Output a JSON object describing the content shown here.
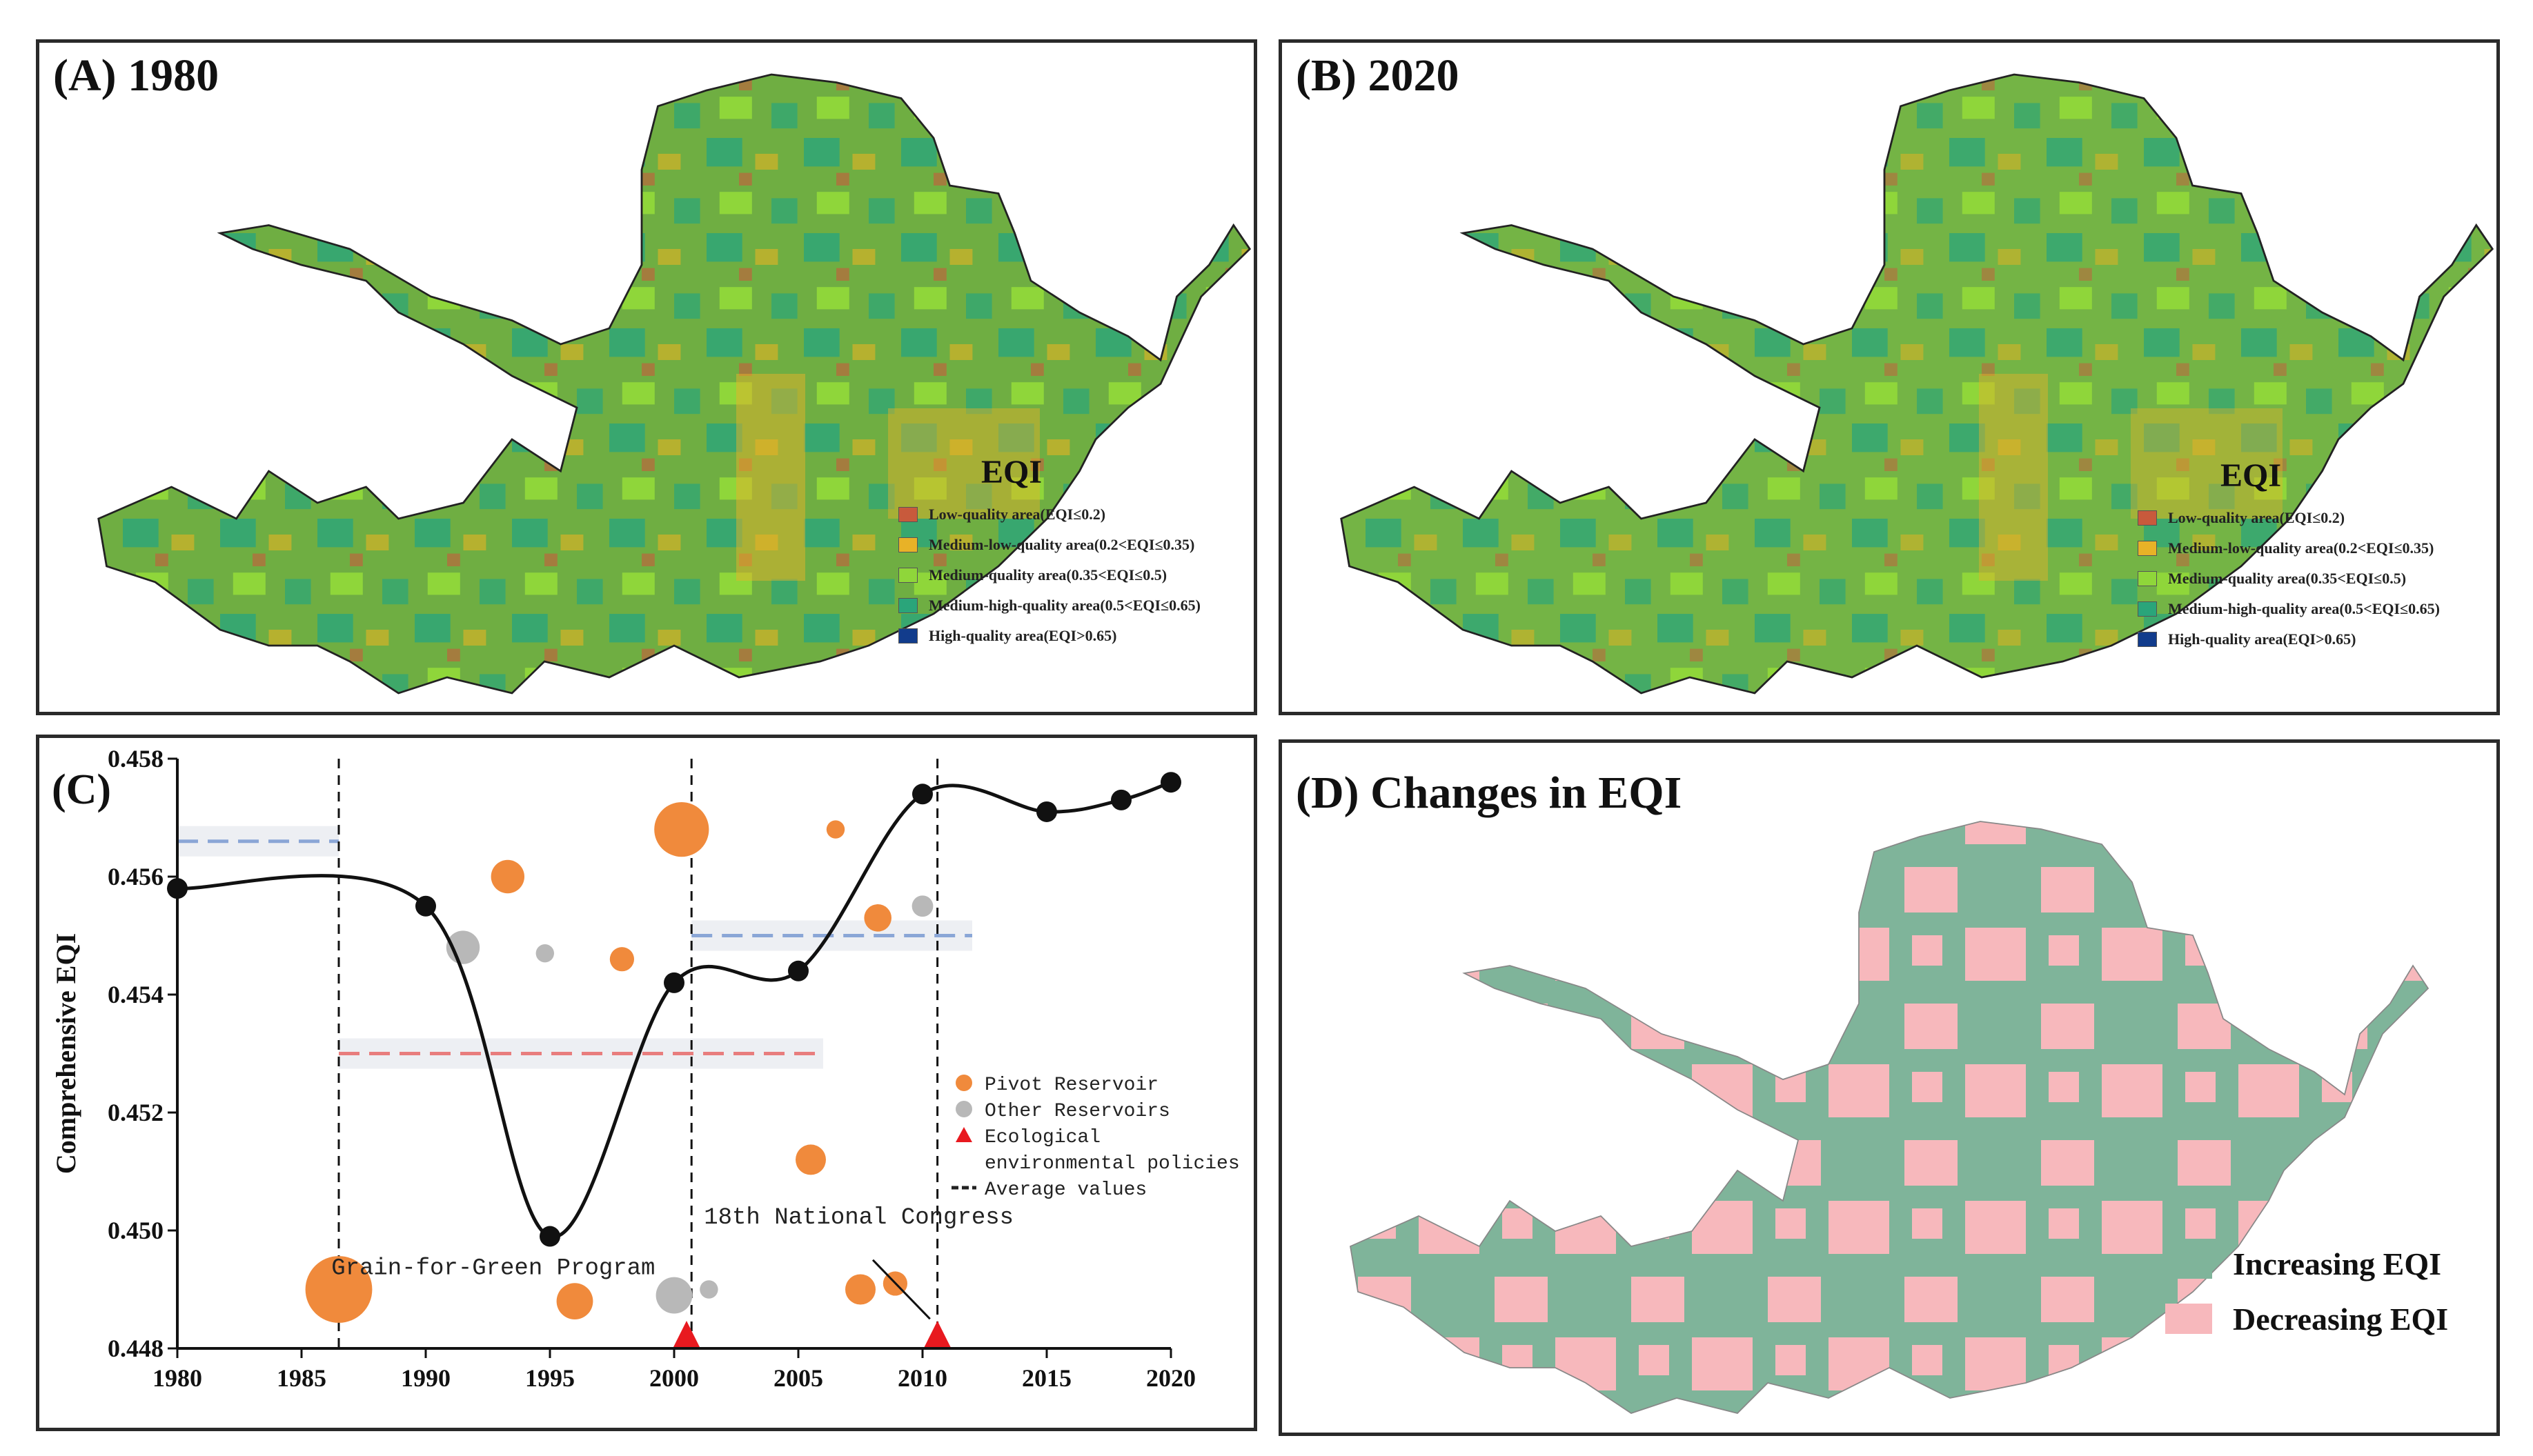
{
  "panel_a": {
    "title": "(A) 1980"
  },
  "panel_b": {
    "title": "(B) 2020"
  },
  "eqi_legend": {
    "title": "EQI",
    "items": [
      {
        "label": "Low-quality area(EQI≤0.2)",
        "color": "#c85a3c"
      },
      {
        "label": "Medium-low-quality area(0.2<EQI≤0.35)",
        "color": "#e8b227"
      },
      {
        "label": "Medium-quality area(0.35<EQI≤0.5)",
        "color": "#8fd63a"
      },
      {
        "label": "Medium-high-quality area(0.5<EQI≤0.65)",
        "color": "#2aa57a"
      },
      {
        "label": "High-quality area(EQI>0.65)",
        "color": "#123c8c"
      }
    ]
  },
  "panel_d": {
    "title": "(D) Changes in EQI",
    "legend": [
      {
        "label": "Increasing EQI",
        "color": "#7fb49a"
      },
      {
        "label": "Decreasing EQI",
        "color": "#f7b8bc"
      }
    ]
  },
  "chart_data": {
    "type": "line",
    "title": "(C)",
    "ylabel": "Comprehensive EQI",
    "xlabel": "",
    "xlim": [
      1980,
      2020
    ],
    "ylim": [
      0.448,
      0.458
    ],
    "xticks": [
      1980,
      1985,
      1990,
      1995,
      2000,
      2005,
      2010,
      2015,
      2020
    ],
    "yticks": [
      0.448,
      0.45,
      0.452,
      0.454,
      0.456,
      0.458
    ],
    "series": [
      {
        "name": "Comprehensive EQI",
        "x": [
          1980,
          1990,
          1995,
          2000,
          2005,
          2010,
          2015,
          2018,
          2020
        ],
        "y": [
          0.4558,
          0.4555,
          0.4499,
          0.4542,
          0.4544,
          0.4574,
          0.4571,
          0.4573,
          0.4576
        ]
      }
    ],
    "pivot_reservoirs": [
      {
        "x": 1986.5,
        "y": 0.449,
        "size": 2.2
      },
      {
        "x": 1993.3,
        "y": 0.456,
        "size": 1.1
      },
      {
        "x": 1996.0,
        "y": 0.4488,
        "size": 1.2
      },
      {
        "x": 1997.9,
        "y": 0.4546,
        "size": 0.8
      },
      {
        "x": 2000.3,
        "y": 0.4568,
        "size": 1.8
      },
      {
        "x": 2005.5,
        "y": 0.4512,
        "size": 1.0
      },
      {
        "x": 2006.5,
        "y": 0.4568,
        "size": 0.6
      },
      {
        "x": 2007.5,
        "y": 0.449,
        "size": 1.0
      },
      {
        "x": 2008.2,
        "y": 0.4553,
        "size": 0.9
      },
      {
        "x": 2008.9,
        "y": 0.4491,
        "size": 0.8
      }
    ],
    "other_reservoirs": [
      {
        "x": 1991.5,
        "y": 0.4548,
        "size": 1.1
      },
      {
        "x": 1994.8,
        "y": 0.4547,
        "size": 0.6
      },
      {
        "x": 2000.0,
        "y": 0.4489,
        "size": 1.2
      },
      {
        "x": 2001.4,
        "y": 0.449,
        "size": 0.6
      },
      {
        "x": 2010.0,
        "y": 0.4555,
        "size": 0.7
      }
    ],
    "policies": [
      {
        "x": 2000.5,
        "label": "Grain-for-Green Program"
      },
      {
        "x": 2010.6,
        "label": "18th National Congress"
      }
    ],
    "vertical_lines": [
      1986.5,
      2000.7,
      2010.6
    ],
    "average_values": [
      {
        "x0": 1980,
        "x1": 1986.5,
        "y": 0.4566,
        "color": "#8aa6d6"
      },
      {
        "x0": 1986.5,
        "x1": 2006,
        "y": 0.453,
        "color": "#e87d7d"
      },
      {
        "x0": 2000.7,
        "x1": 2012,
        "y": 0.455,
        "color": "#8aa6d6"
      }
    ],
    "legend": [
      {
        "label": "Pivot Reservoir",
        "color": "#f08a3c"
      },
      {
        "label": "Other Reservoirs",
        "color": "#b8b8b8"
      },
      {
        "label": "Ecological",
        "color": "#e8191f"
      },
      {
        "label": "environmental policies",
        "color": "#e8191f"
      },
      {
        "label": "Average values",
        "color": "#222222"
      }
    ]
  }
}
